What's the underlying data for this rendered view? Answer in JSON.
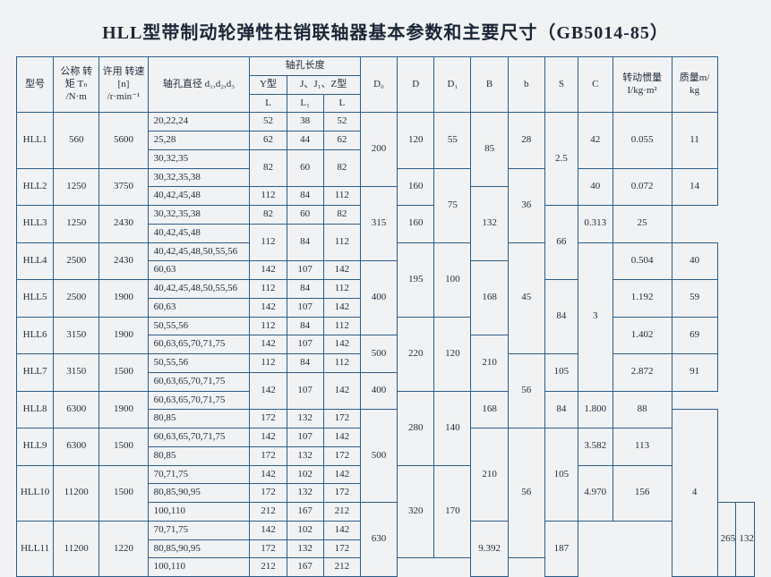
{
  "title": "HLL型带制动轮弹性柱销联轴器基本参数和主要尺寸（GB5014-85）",
  "header": {
    "model": "型号",
    "nominalTorque": "公称\n转矩\nTₙ\n/N·m",
    "allowSpeed": "许用\n转速[n]\n/r·min⁻¹",
    "boreDia": "轴孔直径\nd₁,d₂,d₃",
    "boreLenGroup": "轴孔长度",
    "yType": "Y型",
    "jzType": "J、J₁、Z型",
    "L": "L",
    "L1": "L₁",
    "Lz": "L",
    "D0": "D₀",
    "D": "D",
    "D1": "D₁",
    "B": "B",
    "b": "b",
    "S": "S",
    "C": "C",
    "inertia": "转动惯量\nI/kg·m²",
    "mass": "质量m/\nkg"
  },
  "rows": {
    "hll1": {
      "model": "HLL1",
      "torque": "560",
      "speed": "5600",
      "dia1": "20,22,24",
      "L1a": "52",
      "L1b": "38",
      "L1c": "52",
      "dia2": "25,28",
      "L2a": "62",
      "L2b": "44",
      "L2c": "62",
      "dia3": "30,32,35"
    },
    "row82": {
      "La": "82",
      "Lb": "60",
      "Lc": "82"
    },
    "hll2": {
      "model": "HLL2",
      "torque": "1250",
      "speed": "3750",
      "dia1": "30,32,35,38",
      "dia2": "40,42,45,48",
      "L2a": "112",
      "L2b": "84",
      "L2c": "112"
    },
    "hll3": {
      "model": "HLL3",
      "torque": "1250",
      "speed": "2430",
      "dia1": "30,32,35,38",
      "L1a": "82",
      "L1b": "60",
      "L1c": "82",
      "dia2": "40,42,45,48"
    },
    "row112": {
      "La": "112",
      "Lb": "84",
      "Lc": "112"
    },
    "hll4": {
      "model": "HLL4",
      "torque": "2500",
      "speed": "2430",
      "dia1": "40,42,45,48,50,55,56",
      "dia2": "60,63",
      "L2a": "142",
      "L2b": "107",
      "L2c": "142"
    },
    "hll5": {
      "model": "HLL5",
      "torque": "2500",
      "speed": "1900",
      "dia1": "40,42,45,48,50,55,56",
      "L1a": "112",
      "L1b": "84",
      "L1c": "112",
      "dia2": "60,63",
      "L2a": "142",
      "L2b": "107",
      "L2c": "142"
    },
    "hll6": {
      "model": "HLL6",
      "torque": "3150",
      "speed": "1900",
      "dia1": "50,55,56",
      "L1a": "112",
      "L1b": "84",
      "L1c": "112",
      "dia2": "60,63,65,70,71,75",
      "L2a": "142",
      "L2b": "107",
      "L2c": "142"
    },
    "hll7": {
      "model": "HLL7",
      "torque": "3150",
      "speed": "1500",
      "dia1": "50,55,56",
      "L1a": "112",
      "L1b": "84",
      "L1c": "112",
      "dia2": "60,63,65,70,71,75"
    },
    "row142": {
      "La": "142",
      "Lb": "107",
      "Lc": "142"
    },
    "hll8": {
      "model": "HLL8",
      "torque": "6300",
      "speed": "1900",
      "dia1": "60,63,65,70,71,75",
      "dia2": "80,85",
      "L2a": "172",
      "L2b": "132",
      "L2c": "172"
    },
    "hll9": {
      "model": "HLL9",
      "torque": "6300",
      "speed": "1500",
      "dia1": "60,63,65,70,71,75",
      "L1a": "142",
      "L1b": "107",
      "L1c": "142",
      "dia2": "80,85",
      "L2a": "172",
      "L2b": "132",
      "L2c": "172"
    },
    "hll10": {
      "model": "HLL10",
      "torque": "11200",
      "speed": "1500",
      "dia1": "70,71,75",
      "L1a": "142",
      "L1b": "102",
      "L1c": "142",
      "dia2": "80,85,90,95",
      "L2a": "172",
      "L2b": "132",
      "L2c": "172",
      "dia3": "100,110",
      "L3a": "212",
      "L3b": "167",
      "L3c": "212"
    },
    "hll11": {
      "model": "HLL11",
      "torque": "11200",
      "speed": "1220",
      "dia1": "70,71,75",
      "L1a": "142",
      "L1b": "102",
      "L1c": "142",
      "dia2": "80,85,90,95",
      "L2a": "172",
      "L2b": "132",
      "L2c": "172",
      "dia3": "100,110",
      "L3a": "212",
      "L3b": "167",
      "L3c": "212"
    },
    "D0": {
      "v200": "200",
      "v315": "315",
      "v400a": "400",
      "v500a": "500",
      "v400b": "400",
      "v500b": "500",
      "v630": "630"
    },
    "D": {
      "v120": "120",
      "v160a": "160",
      "v160b": "160",
      "v195": "195",
      "v220": "220",
      "v280": "280",
      "v320": "320"
    },
    "D1": {
      "v55": "55",
      "v75": "75",
      "v100": "100",
      "v120": "120",
      "v140": "140",
      "v170": "170"
    },
    "Bc": {
      "v85": "85",
      "v132": "132",
      "v168": "168",
      "v210a": "210",
      "v168b": "168",
      "v210b": "210",
      "v265": "265"
    },
    "bl": {
      "v28": "28",
      "v36": "36",
      "v45": "45",
      "v56": "56"
    },
    "S": {
      "v25": "2.5",
      "v3": "3",
      "v4": "4"
    },
    "C": {
      "v42": "42",
      "v40": "40",
      "v66": "66",
      "v84": "84",
      "v105a": "105",
      "v84b": "84",
      "v105b": "105",
      "v132": "132"
    },
    "inertia": {
      "v1": "0.055",
      "v2": "0.072",
      "v3": "0.313",
      "v4": "0.504",
      "v5": "1.192",
      "v6": "1.402",
      "v7": "2.872",
      "v8": "1.800",
      "v9": "3.582",
      "v10": "4.970",
      "v11": "9.392"
    },
    "mass": {
      "v1": "11",
      "v2": "14",
      "v3": "25",
      "v4": "40",
      "v5": "59",
      "v6": "69",
      "v7": "91",
      "v8": "88",
      "v9": "113",
      "v10": "156",
      "v11": "187"
    }
  }
}
